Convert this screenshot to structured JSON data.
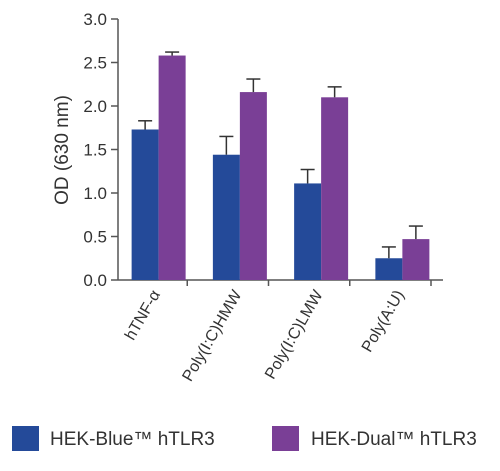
{
  "chart_data": {
    "type": "bar",
    "title": "",
    "xlabel": "",
    "ylabel": "OD (630 nm)",
    "ylim": [
      0,
      3.0
    ],
    "yticks": [
      "0.0",
      "0.5",
      "1.0",
      "1.5",
      "2.0",
      "2.5",
      "3.0"
    ],
    "categories": [
      "hTNF-α",
      "Poly(I:C)HMW",
      "Poly(I:C)LMW",
      "Poly(A:U)"
    ],
    "series": [
      {
        "name": "HEK-Blue™ hTLR3",
        "color": "#244a99",
        "values": [
          1.73,
          1.44,
          1.11,
          0.25
        ],
        "errors": [
          0.1,
          0.21,
          0.16,
          0.13
        ]
      },
      {
        "name": "HEK-Dual™ hTLR3",
        "color": "#7a3f96",
        "values": [
          2.58,
          2.16,
          2.1,
          0.47
        ],
        "errors": [
          0.04,
          0.15,
          0.12,
          0.15
        ]
      }
    ],
    "grid": false,
    "legend_position": "bottom"
  }
}
